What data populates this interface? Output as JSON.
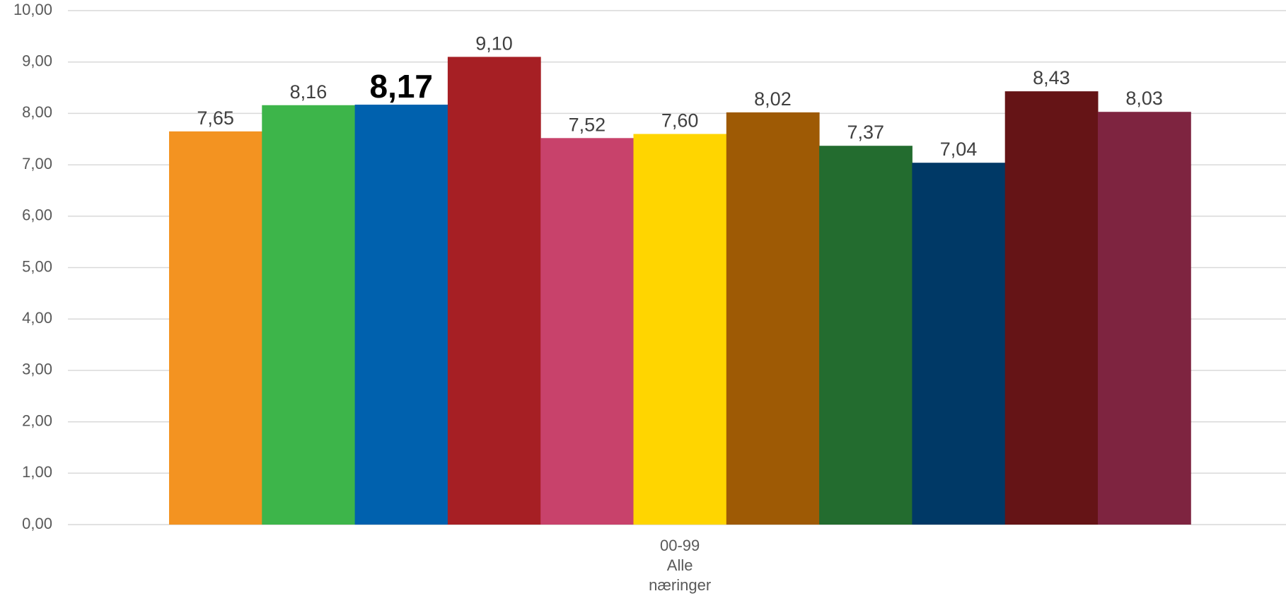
{
  "chart_data": {
    "type": "bar",
    "title": "",
    "xlabel": "",
    "ylabel": "",
    "ylim": [
      0,
      10
    ],
    "yticks": [
      "0,00",
      "1,00",
      "2,00",
      "3,00",
      "4,00",
      "5,00",
      "6,00",
      "7,00",
      "8,00",
      "9,00",
      "10,00"
    ],
    "grid": true,
    "legend": "none",
    "categories": [
      [
        "00-99",
        "Alle",
        "næringer"
      ]
    ],
    "series": [
      {
        "color": "#F39321",
        "values": [
          7.65
        ],
        "label": "7,65",
        "emphasis": false
      },
      {
        "color": "#3DB54A",
        "values": [
          8.16
        ],
        "label": "8,16",
        "emphasis": false
      },
      {
        "color": "#0061AE",
        "values": [
          8.17
        ],
        "label": "8,17",
        "emphasis": true
      },
      {
        "color": "#A61F24",
        "values": [
          9.1
        ],
        "label": "9,10",
        "emphasis": false
      },
      {
        "color": "#C8426B",
        "values": [
          7.52
        ],
        "label": "7,52",
        "emphasis": false
      },
      {
        "color": "#FFD500",
        "values": [
          7.6
        ],
        "label": "7,60",
        "emphasis": false
      },
      {
        "color": "#9E5A05",
        "values": [
          8.02
        ],
        "label": "8,02",
        "emphasis": false
      },
      {
        "color": "#236C2F",
        "values": [
          7.37
        ],
        "label": "7,37",
        "emphasis": false
      },
      {
        "color": "#003966",
        "values": [
          7.04
        ],
        "label": "7,04",
        "emphasis": false
      },
      {
        "color": "#651416",
        "values": [
          8.43
        ],
        "label": "8,43",
        "emphasis": false
      },
      {
        "color": "#7E2440",
        "values": [
          8.03
        ],
        "label": "8,03",
        "emphasis": false
      }
    ]
  }
}
